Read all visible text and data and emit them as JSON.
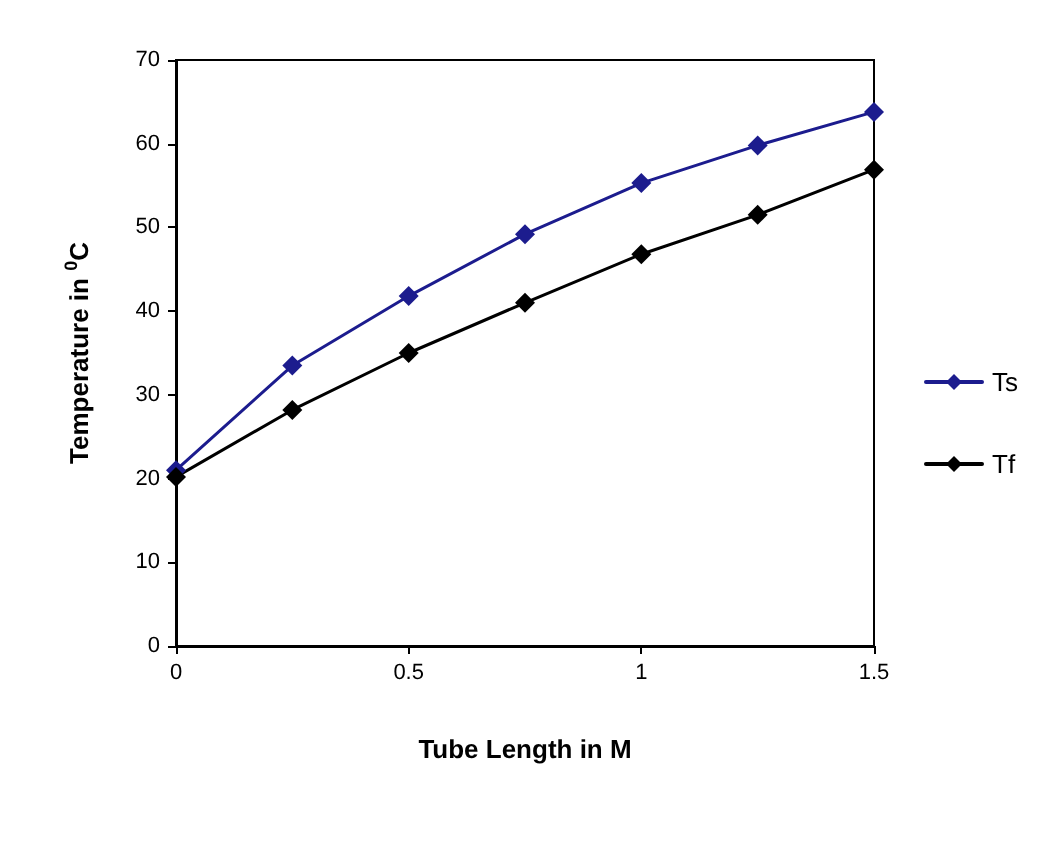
{
  "chart_data": {
    "type": "line",
    "xlabel": "Tube Length in M",
    "ylabel": "Temperature in $^{0}$C",
    "x": [
      0,
      0.25,
      0.5,
      0.75,
      1,
      1.25,
      1.5
    ],
    "series": [
      {
        "name": "Ts",
        "color": "#1c1c8e",
        "values": [
          21,
          33.5,
          41.8,
          49.2,
          55.3,
          59.8,
          63.8
        ]
      },
      {
        "name": "Tf",
        "color": "#000000",
        "values": [
          20.2,
          28.2,
          35,
          41,
          46.8,
          51.5,
          56.9
        ]
      }
    ],
    "xlim": [
      0,
      1.5
    ],
    "xticks": [
      0,
      0.5,
      1,
      1.5
    ],
    "ylim": [
      0,
      70
    ],
    "yticks": [
      0,
      10,
      20,
      30,
      40,
      50,
      60,
      70
    ],
    "grid": false,
    "legend": "right",
    "marker": "diamond",
    "line_style": "solid"
  }
}
